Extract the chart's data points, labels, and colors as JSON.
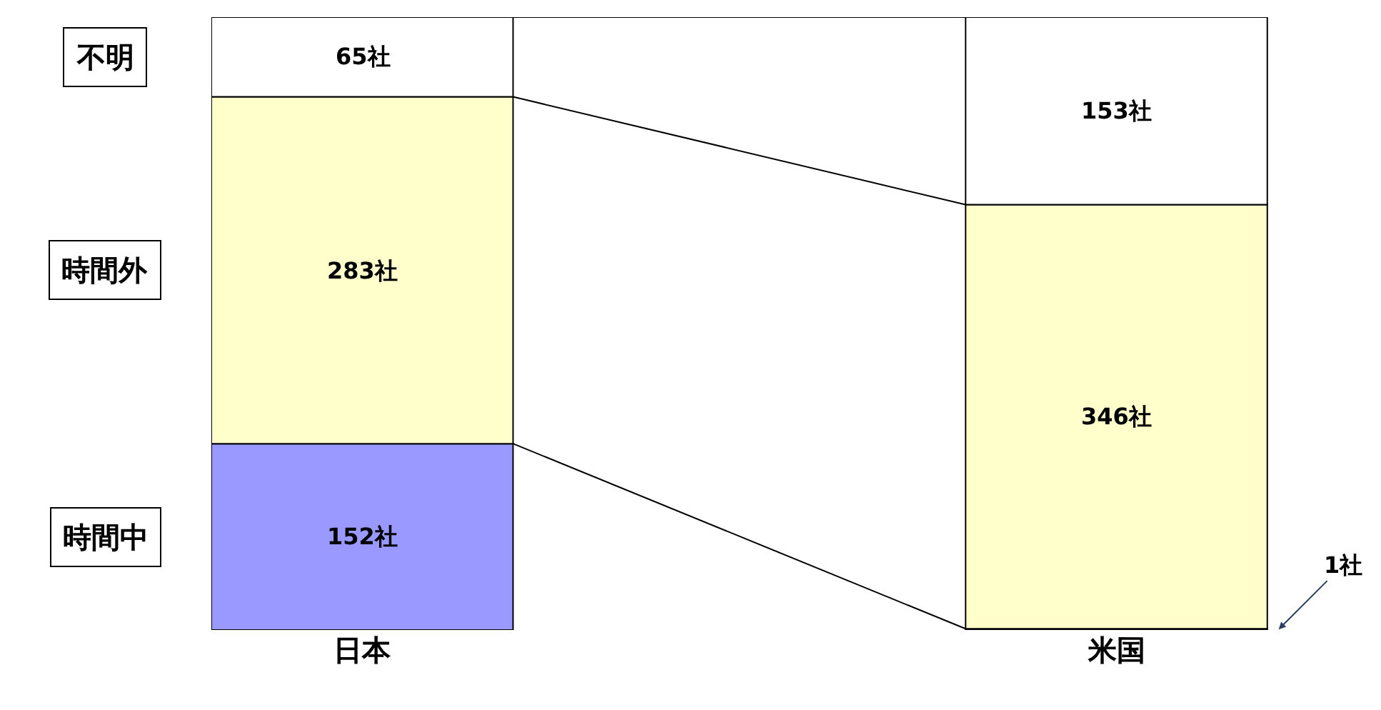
{
  "chart_data": {
    "type": "bar",
    "stacked": true,
    "categories": [
      "日本",
      "米国"
    ],
    "series": [
      {
        "name": "時間中",
        "color": "#9999ff",
        "values": [
          152,
          1
        ],
        "value_labels": [
          "152社",
          "1社"
        ]
      },
      {
        "name": "時間外",
        "color": "#ffffcc",
        "values": [
          283,
          346
        ],
        "value_labels": [
          "283社",
          "346社"
        ]
      },
      {
        "name": "不明",
        "color": "#ffffff",
        "values": [
          65,
          153
        ],
        "value_labels": [
          "65社",
          "153社"
        ]
      }
    ]
  }
}
